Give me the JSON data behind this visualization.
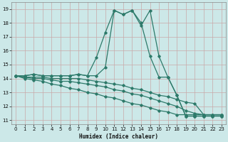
{
  "xlabel": "Humidex (Indice chaleur)",
  "background_color": "#cce8e8",
  "line_color": "#2d7a6a",
  "xlim": [
    -0.5,
    23.5
  ],
  "ylim": [
    10.7,
    19.5
  ],
  "yticks": [
    11,
    12,
    13,
    14,
    15,
    16,
    17,
    18,
    19
  ],
  "xticks": [
    0,
    1,
    2,
    3,
    4,
    5,
    6,
    7,
    8,
    9,
    10,
    11,
    12,
    13,
    14,
    15,
    16,
    17,
    18,
    19,
    20,
    21,
    22,
    23
  ],
  "curves": [
    [
      14.2,
      14.2,
      14.3,
      14.2,
      14.2,
      14.2,
      14.2,
      14.3,
      14.2,
      14.2,
      14.8,
      18.9,
      18.6,
      18.9,
      17.8,
      18.9,
      15.6,
      14.1,
      12.8,
      11.3,
      11.3,
      11.3,
      11.3,
      11.3
    ],
    [
      14.2,
      14.2,
      14.3,
      14.2,
      14.2,
      14.2,
      14.2,
      14.3,
      14.2,
      15.5,
      17.3,
      18.9,
      18.6,
      18.9,
      18.0,
      15.6,
      14.1,
      14.1,
      12.8,
      11.3,
      11.3,
      11.3,
      11.3,
      11.3
    ],
    [
      14.2,
      14.1,
      14.1,
      14.1,
      14.0,
      14.0,
      14.0,
      14.0,
      13.9,
      13.8,
      13.7,
      13.6,
      13.5,
      13.3,
      13.2,
      13.0,
      12.8,
      12.7,
      12.5,
      12.3,
      12.2,
      11.4,
      11.4,
      11.4
    ],
    [
      14.2,
      14.1,
      14.0,
      14.0,
      13.9,
      13.8,
      13.8,
      13.7,
      13.6,
      13.5,
      13.4,
      13.2,
      13.1,
      12.9,
      12.8,
      12.6,
      12.4,
      12.2,
      12.0,
      11.7,
      11.5,
      11.4,
      11.4,
      11.4
    ],
    [
      14.2,
      14.0,
      13.9,
      13.8,
      13.6,
      13.5,
      13.3,
      13.2,
      13.0,
      12.9,
      12.7,
      12.6,
      12.4,
      12.2,
      12.1,
      11.9,
      11.7,
      11.6,
      11.4,
      11.4,
      11.4,
      11.4,
      11.4,
      11.4
    ]
  ]
}
